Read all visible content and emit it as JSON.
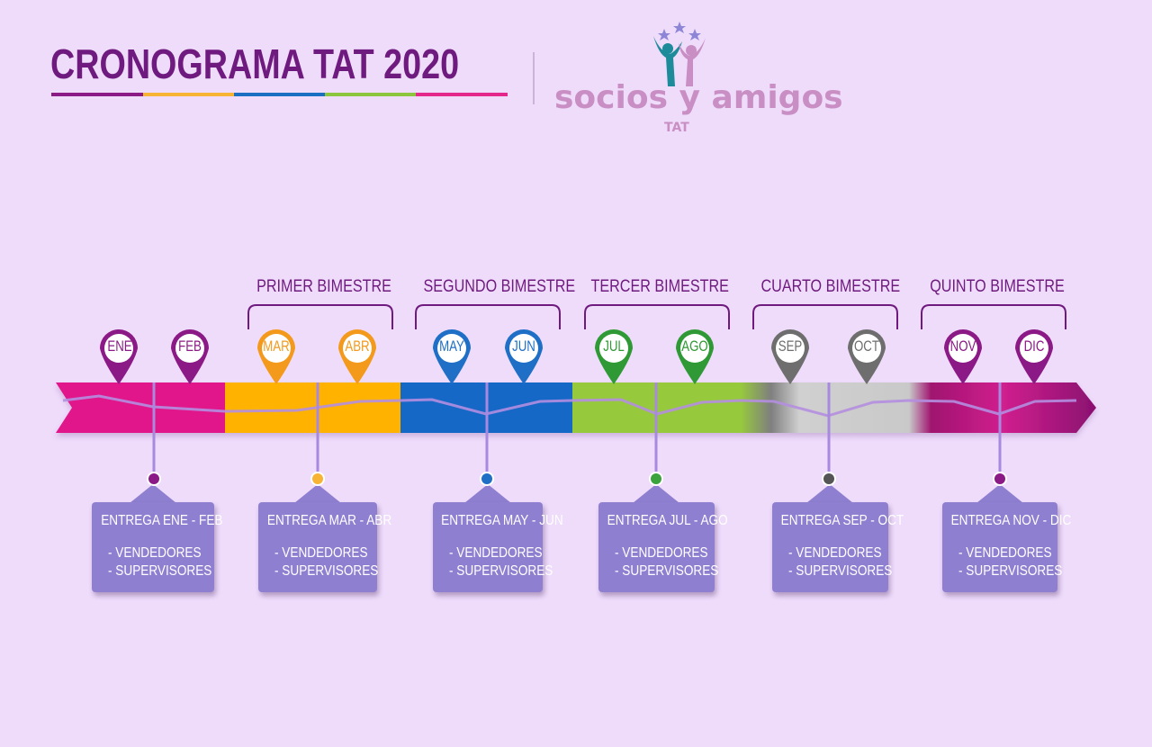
{
  "header": {
    "title": "CRONOGRAMA TAT 2020",
    "underline_colors": [
      "#8b1a86",
      "#f7b334",
      "#1b6fc2",
      "#8cc63f",
      "#e4278a"
    ]
  },
  "logo": {
    "wordmark": "socios y amigos",
    "subtitle": "TAT",
    "icon": "people-celebrating-with-stars-icon"
  },
  "bimestres": [
    {
      "label": "PRIMER BIMESTRE"
    },
    {
      "label": "SEGUNDO BIMESTRE"
    },
    {
      "label": "TERCER BIMESTRE"
    },
    {
      "label": "CUARTO BIMESTRE"
    },
    {
      "label": "QUINTO BIMESTRE"
    }
  ],
  "months": [
    {
      "label": "ENE",
      "color": "#8b1a86"
    },
    {
      "label": "FEB",
      "color": "#8b1a86"
    },
    {
      "label": "MAR",
      "color": "#f39a1d"
    },
    {
      "label": "ABR",
      "color": "#f39a1d"
    },
    {
      "label": "MAY",
      "color": "#1f6fc6"
    },
    {
      "label": "JUN",
      "color": "#1f6fc6"
    },
    {
      "label": "JUL",
      "color": "#2f9a35"
    },
    {
      "label": "AGO",
      "color": "#2f9a35"
    },
    {
      "label": "SEP",
      "color": "#6e6e6e"
    },
    {
      "label": "OCT",
      "color": "#6e6e6e"
    },
    {
      "label": "NOV",
      "color": "#8b1a86"
    },
    {
      "label": "DIC",
      "color": "#8b1a86"
    }
  ],
  "timeline_colors": [
    "#e0168a",
    "#ffb300",
    "#1467c6",
    "#97c93d",
    "#c9c9c9",
    "#b0127d"
  ],
  "deliveries": [
    {
      "title": "ENTREGA ENE - FEB",
      "items": [
        "- VENDEDORES",
        "- SUPERVISORES"
      ],
      "dot_color": "#8b1a86"
    },
    {
      "title": "ENTREGA MAR - ABR",
      "items": [
        "- VENDEDORES",
        "- SUPERVISORES"
      ],
      "dot_color": "#f7b334"
    },
    {
      "title": "ENTREGA MAY - JUN",
      "items": [
        "- VENDEDORES",
        "- SUPERVISORES"
      ],
      "dot_color": "#1f6fc6"
    },
    {
      "title": "ENTREGA JUL - AGO",
      "items": [
        "- VENDEDORES",
        "- SUPERVISORES"
      ],
      "dot_color": "#3aa33c"
    },
    {
      "title": "ENTREGA SEP - OCT",
      "items": [
        "- VENDEDORES",
        "- SUPERVISORES"
      ],
      "dot_color": "#555555"
    },
    {
      "title": "ENTREGA NOV - DIC",
      "items": [
        "- VENDEDORES",
        "- SUPERVISORES"
      ],
      "dot_color": "#8b1a86"
    }
  ]
}
